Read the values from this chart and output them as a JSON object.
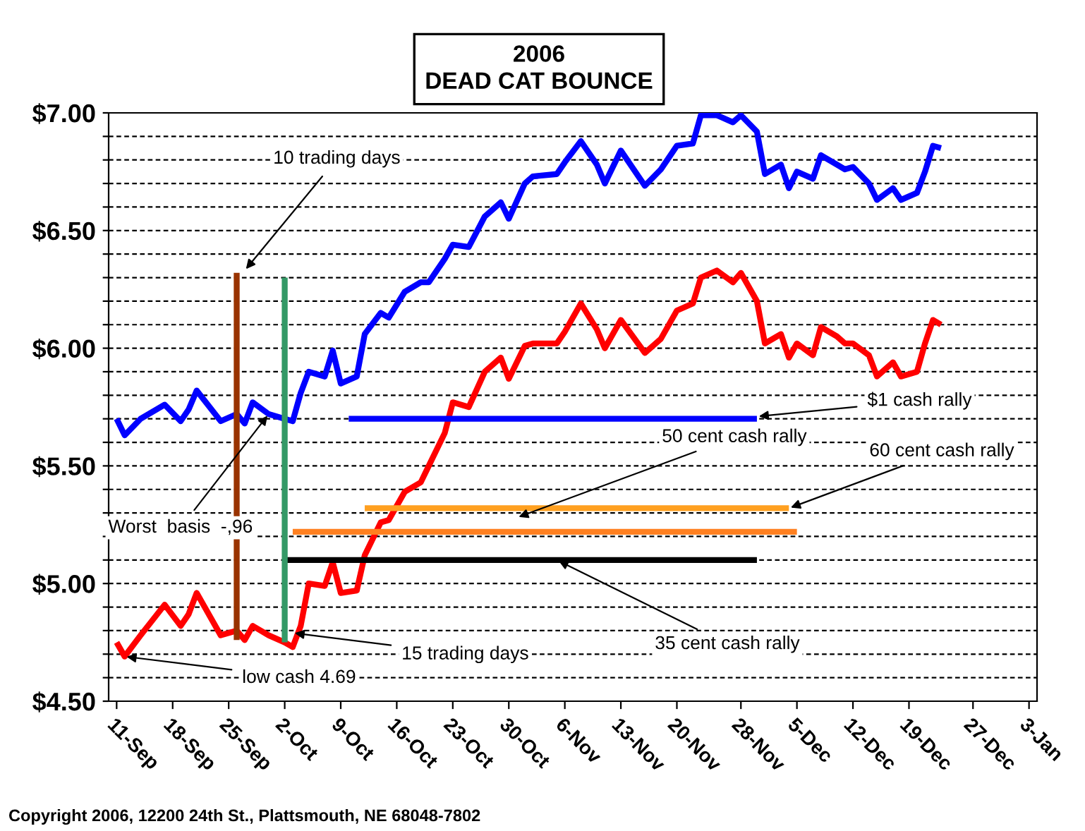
{
  "chart_data": {
    "type": "line",
    "title": "2006\nDEAD CAT BOUNCE",
    "xlim": [
      "2006-09-10",
      "2007-01-04"
    ],
    "xticks": [
      {
        "value": "2006-09-11",
        "label": "11-Sep"
      },
      {
        "value": "2006-09-18",
        "label": "18-Sep"
      },
      {
        "value": "2006-09-25",
        "label": "25-Sep"
      },
      {
        "value": "2006-10-02",
        "label": "2-Oct"
      },
      {
        "value": "2006-10-09",
        "label": "9-Oct"
      },
      {
        "value": "2006-10-16",
        "label": "16-Oct"
      },
      {
        "value": "2006-10-23",
        "label": "23-Oct"
      },
      {
        "value": "2006-10-30",
        "label": "30-Oct"
      },
      {
        "value": "2006-11-06",
        "label": "6-Nov"
      },
      {
        "value": "2006-11-13",
        "label": "13-Nov"
      },
      {
        "value": "2006-11-20",
        "label": "20-Nov"
      },
      {
        "value": "2006-11-28",
        "label": "28-Nov"
      },
      {
        "value": "2006-12-05",
        "label": "5-Dec"
      },
      {
        "value": "2006-12-12",
        "label": "12-Dec"
      },
      {
        "value": "2006-12-19",
        "label": "19-Dec"
      },
      {
        "value": "2006-12-27",
        "label": "27-Dec"
      },
      {
        "value": "2007-01-03",
        "label": "3-Jan"
      }
    ],
    "ylim": [
      4.5,
      7.0
    ],
    "yticks": [
      {
        "value": 4.5,
        "label": "$4.50"
      },
      {
        "value": 4.6,
        "label": null
      },
      {
        "value": 4.7,
        "label": null
      },
      {
        "value": 4.8,
        "label": null
      },
      {
        "value": 4.9,
        "label": null
      },
      {
        "value": 5.0,
        "label": "$5.00"
      },
      {
        "value": 5.1,
        "label": null
      },
      {
        "value": 5.2,
        "label": null
      },
      {
        "value": 5.3,
        "label": null
      },
      {
        "value": 5.4,
        "label": null
      },
      {
        "value": 5.5,
        "label": "$5.50"
      },
      {
        "value": 5.6,
        "label": null
      },
      {
        "value": 5.7,
        "label": null
      },
      {
        "value": 5.8,
        "label": null
      },
      {
        "value": 5.9,
        "label": null
      },
      {
        "value": 6.0,
        "label": "$6.00"
      },
      {
        "value": 6.1,
        "label": null
      },
      {
        "value": 6.2,
        "label": null
      },
      {
        "value": 6.3,
        "label": null
      },
      {
        "value": 6.4,
        "label": null
      },
      {
        "value": 6.5,
        "label": "$6.50"
      },
      {
        "value": 6.6,
        "label": null
      },
      {
        "value": 6.7,
        "label": null
      },
      {
        "value": 6.8,
        "label": null
      },
      {
        "value": 6.9,
        "label": null
      },
      {
        "value": 7.0,
        "label": "$7.00"
      }
    ],
    "grid": "y",
    "line_style": "solid",
    "marker": "none",
    "x": [
      "2006-09-11",
      "2006-09-12",
      "2006-09-14",
      "2006-09-17",
      "2006-09-19",
      "2006-09-20",
      "2006-09-21",
      "2006-09-24",
      "2006-09-26",
      "2006-09-27",
      "2006-09-28",
      "2006-09-30",
      "2006-10-02",
      "2006-10-03",
      "2006-10-04",
      "2006-10-05",
      "2006-10-07",
      "2006-10-08",
      "2006-10-09",
      "2006-10-11",
      "2006-10-12",
      "2006-10-14",
      "2006-10-15",
      "2006-10-17",
      "2006-10-19",
      "2006-10-20",
      "2006-10-22",
      "2006-10-23",
      "2006-10-25",
      "2006-10-27",
      "2006-10-29",
      "2006-10-30",
      "2006-11-01",
      "2006-11-02",
      "2006-11-05",
      "2006-11-06",
      "2006-11-08",
      "2006-11-10",
      "2006-11-11",
      "2006-11-13",
      "2006-11-16",
      "2006-11-18",
      "2006-11-20",
      "2006-11-22",
      "2006-11-23",
      "2006-11-25",
      "2006-11-27",
      "2006-11-28",
      "2006-11-30",
      "2006-12-01",
      "2006-12-03",
      "2006-12-04",
      "2006-12-05",
      "2006-12-07",
      "2006-12-08",
      "2006-12-10",
      "2006-12-11",
      "2006-12-12",
      "2006-12-14",
      "2006-12-15",
      "2006-12-17",
      "2006-12-18",
      "2006-12-20",
      "2006-12-21",
      "2006-12-22",
      "2006-12-23"
    ],
    "series": [
      {
        "color": "#0000ff",
        "values": [
          5.7,
          5.63,
          5.7,
          5.76,
          5.69,
          5.74,
          5.82,
          5.69,
          5.72,
          5.68,
          5.77,
          5.72,
          5.7,
          5.69,
          5.81,
          5.9,
          5.88,
          5.99,
          5.85,
          5.88,
          6.06,
          6.15,
          6.13,
          6.24,
          6.28,
          6.28,
          6.38,
          6.44,
          6.43,
          6.56,
          6.62,
          6.55,
          6.7,
          6.73,
          6.74,
          6.79,
          6.88,
          6.78,
          6.7,
          6.84,
          6.69,
          6.76,
          6.86,
          6.87,
          6.99,
          6.99,
          6.96,
          6.99,
          6.92,
          6.74,
          6.78,
          6.68,
          6.75,
          6.72,
          6.82,
          6.78,
          6.76,
          6.77,
          6.7,
          6.63,
          6.68,
          6.63,
          6.66,
          6.75,
          6.86,
          6.85
        ]
      },
      {
        "color": "#ff0000",
        "values": [
          4.75,
          4.69,
          4.78,
          4.91,
          4.82,
          4.87,
          4.96,
          4.78,
          4.8,
          4.76,
          4.82,
          4.78,
          4.75,
          4.73,
          4.82,
          5.0,
          4.99,
          5.09,
          4.96,
          4.97,
          5.12,
          5.26,
          5.27,
          5.39,
          5.43,
          5.5,
          5.64,
          5.77,
          5.75,
          5.9,
          5.96,
          5.87,
          6.01,
          6.02,
          6.02,
          6.07,
          6.19,
          6.08,
          6.0,
          6.12,
          5.98,
          6.04,
          6.16,
          6.19,
          6.3,
          6.33,
          6.28,
          6.32,
          6.2,
          6.02,
          6.06,
          5.96,
          6.02,
          5.97,
          6.09,
          6.05,
          6.02,
          6.02,
          5.97,
          5.88,
          5.94,
          5.88,
          5.9,
          6.02,
          6.12,
          6.1
        ]
      },
      {
        "color": "#0000ff",
        "x": [
          "2006-10-10",
          "2006-11-30"
        ],
        "values": [
          5.7,
          5.7
        ]
      },
      {
        "color": "#ffa020",
        "x": [
          "2006-10-12",
          "2006-12-04"
        ],
        "values": [
          5.32,
          5.32
        ]
      },
      {
        "color": "#ff8020",
        "x": [
          "2006-10-03",
          "2006-12-05"
        ],
        "values": [
          5.22,
          5.22
        ]
      },
      {
        "color": "#000000",
        "x": [
          "2006-10-02",
          "2006-11-30"
        ],
        "values": [
          5.1,
          5.1
        ]
      },
      {
        "color": "#993300",
        "x": [
          "2006-09-26",
          "2006-09-26"
        ],
        "values": [
          6.32,
          4.76
        ]
      },
      {
        "color": "#339966",
        "x": [
          "2006-10-02",
          "2006-10-02"
        ],
        "values": [
          6.3,
          4.75
        ]
      }
    ],
    "annotations": [
      {
        "text": "10 trading days",
        "x": "2006-09-27",
        "y": 6.33
      },
      {
        "text": "Worst  basis  -,96",
        "x": "2006-09-30",
        "y": 5.72
      },
      {
        "text": "15 trading days",
        "x": "2006-10-03",
        "y": 4.79
      },
      {
        "text": "low cash 4.69",
        "x": "2006-09-12",
        "y": 4.69
      },
      {
        "text": "$1 cash rally",
        "x": "2006-11-30",
        "y": 5.71
      },
      {
        "text": "50 cent cash rally",
        "x": "2006-10-31",
        "y": 5.28
      },
      {
        "text": "60 cent cash rally",
        "x": "2006-12-04",
        "y": 5.32
      },
      {
        "text": "35 cent cash rally",
        "x": "2006-11-05",
        "y": 5.1
      },
      "Copyright 2006, 12200 24th St., Plattsmouth, NE 68048-7802"
    ]
  }
}
